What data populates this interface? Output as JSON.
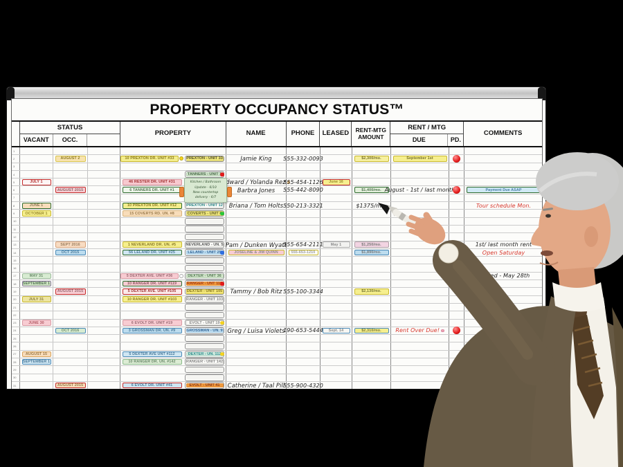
{
  "board": {
    "title": "PROPERTY OCCUPANCY STATUS™",
    "headers": {
      "status": "STATUS",
      "vacant": "VACANT",
      "occ": "OCC.",
      "property": "PROPERTY",
      "name": "NAME",
      "phone": "PHONE",
      "leased": "LEASED",
      "amount_line1": "RENT-MTG",
      "amount_line2": "AMOUNT",
      "rent_mtg": "RENT / MTG",
      "due": "DUE",
      "pd": "PD.",
      "comments": "COMMENTS"
    },
    "colors": {
      "frame": "#c2c2c2",
      "face": "#fcfcfa",
      "grid": "#cbcbcb",
      "dot_red": "#e31b1b",
      "dot_green": "#27c837",
      "dot_yellow": "#f5d21f",
      "dot_blue": "#2f6fe0",
      "dot_pink": "#f0a8b8",
      "clip_orange": "#ea8638"
    },
    "rows": [
      {
        "n": "1"
      },
      {
        "n": "2",
        "occ": {
          "t": "AUGUST 2",
          "f": "#f8e3ae",
          "b": "#d8c44e",
          "c": "#8a7a22"
        },
        "prop": {
          "t": "10 PREXTON DR. UNIT #33",
          "f": "#f4ee8e",
          "b": "#c5b32a",
          "c": "#8a7a22"
        },
        "propdot": {
          "color": "#f5d21f",
          "border": "#b9a512"
        },
        "card": {
          "t": "PREXTON - UNIT 33",
          "f": "#f0e87c",
          "b": "#bdb268",
          "c": "#55512a"
        },
        "name": {
          "t": "Jamie King"
        },
        "phone": {
          "t": "555-332-0093"
        },
        "amount": {
          "t": "$2,300/mo.",
          "f": "#f6f0a0",
          "b": "#c9b92e",
          "c": "#77702a"
        },
        "due": {
          "tag": {
            "t": "September 1st",
            "f": "#f6ef8e",
            "b": "#c9b92e",
            "c": "#77702a"
          }
        },
        "pd": "red"
      },
      {
        "n": "3"
      },
      {
        "n": "4",
        "card": {
          "t": "TANNERS - UNIT 1",
          "f": "#cfe3c9",
          "b": "#96b296",
          "c": "#4a6a4a",
          "dot": "#e31b1b"
        },
        "note": {
          "lines": [
            "Kitchen / Bathroom",
            "Update - 6/10",
            "New countertop",
            "delivery - 6/7"
          ]
        }
      },
      {
        "n": "5",
        "vac": {
          "t": "JULY 1",
          "f": "#fdf5f5",
          "b": "#c32a2a",
          "c": "#b32a2a"
        },
        "prop": {
          "t": "46 RESTER DR. UNIT #31",
          "f": "#f7c9cf",
          "b": "#d8909a",
          "c": "#a33333"
        },
        "name": {
          "t": "Edward / Yolanda Rez",
          "dot": "#d8b27a"
        },
        "phone": {
          "t": "555-454-1126"
        },
        "leased": {
          "t": "June 16",
          "f": "#f6ef8e",
          "b": "#c32a2a",
          "c": "#9a8a2a"
        }
      },
      {
        "n": "6",
        "occ": {
          "t": "AUGUST 2015",
          "f": "#f8ccd2",
          "b": "#c32a2a",
          "c": "#8a6a6a"
        },
        "prop": {
          "t": "6 TANNERS DR. UNIT #1",
          "f": "#eef6ea",
          "b": "#2d6a2d",
          "c": "#557755"
        },
        "name": {
          "t": "Barbra Jones"
        },
        "phone": {
          "t": "555-442-8090"
        },
        "amount": {
          "t": "$1,400/mo.",
          "f": "#e4f0dc",
          "b": "#2d6a2d",
          "c": "#557755"
        },
        "due": {
          "hw": {
            "t": "August - 1st / last month",
            "c": "#1c1c1c"
          }
        },
        "pd": "red",
        "comment": {
          "tag": {
            "t": "Payment Due ASAP",
            "f": "#cfe9f4",
            "b": "#2d6a2d",
            "c": "#4a7fa8"
          }
        }
      },
      {
        "n": "7"
      },
      {
        "n": "8",
        "vac": {
          "t": "JUNE 1",
          "f": "#f8ddba",
          "b": "#2d6a2d",
          "c": "#8a7a55"
        },
        "prop": {
          "t": "10 PREXTON DR. UNIT #12",
          "f": "#f4ee8e",
          "b": "#2d6a2d",
          "c": "#8a7a22"
        },
        "card": {
          "t": "PREXTON - UNIT 12",
          "f": "#fbfbf8",
          "b": "#bdbdb8",
          "c": "#2e8b8b"
        },
        "name": {
          "t": "Briana / Tom Holts"
        },
        "phone": {
          "t": "550-213-3321"
        },
        "amount": {
          "hw": {
            "t": "$1375/mo.",
            "c": "#1c1c1c"
          }
        },
        "comment": {
          "hw": {
            "t": "Tour schedule Mon.",
            "c": "#d6352b"
          }
        }
      },
      {
        "n": "9",
        "vac": {
          "t": "OCTOBER 1",
          "f": "#f6ef8e",
          "b": "#c9b92e",
          "c": "#9a8a2a"
        },
        "prop": {
          "t": "15 COVERTS RD. UN. #8",
          "f": "#f8ddba",
          "b": "#d8b27a",
          "c": "#9a7a4a"
        },
        "card": {
          "t": "COVERTS - UNIT 8",
          "f": "#f0e87c",
          "b": "#bdb268",
          "c": "#6a6530",
          "dot": "#27c837"
        }
      },
      {
        "n": "10",
        "empty_card": true
      },
      {
        "n": "11",
        "empty_card": true
      },
      {
        "n": "12",
        "empty_card": true
      },
      {
        "n": "13",
        "occ": {
          "t": "SEPT 2016",
          "f": "#f8dcc2",
          "b": "#d8a27a",
          "c": "#9a7a5a"
        },
        "prop": {
          "t": "1 NEVERLAND DR. UN. #5",
          "f": "#f6ef8e",
          "b": "#c9b92e",
          "c": "#8a7a22"
        },
        "card": {
          "t": "NEVERLAND - UN. 5",
          "f": "#fbfbf8",
          "b": "#bdbdb8",
          "c": "#555555"
        },
        "name": {
          "t": "Pam / Dunken Wyatt"
        },
        "phone": {
          "t": "555-654-2111"
        },
        "leased": {
          "t": "May 1",
          "f": "#f2f2f0",
          "b": "#aaaaaa",
          "c": "#888888"
        },
        "amount": {
          "t": "$1,250/mo.",
          "f": "#f2d4e2",
          "b": "#b0a0a8",
          "c": "#777777"
        },
        "pd": "green",
        "comment": {
          "hw": {
            "t": "1st/ last month rent",
            "c": "#1c1c1c"
          }
        }
      },
      {
        "n": "14",
        "occ": {
          "t": "OCT 2015",
          "f": "#bcdcee",
          "b": "#4a8ab8",
          "c": "#4a7a9a"
        },
        "prop": {
          "t": "56 LELAND DR. UNIT #25",
          "f": "#cfe6f2",
          "b": "#2d6a2d",
          "c": "#4a7a9a"
        },
        "card": {
          "t": "LELAND - UNIT 25",
          "f": "#bfdff2",
          "b": "#8fb5cf",
          "c": "#3a6a9a",
          "dot": "#2f6fe0"
        },
        "name": {
          "tag": {
            "t": "JOSELINE & JIM QUINN",
            "f": "#f8ccd2",
            "b": "#c9b92e",
            "c": "#8a8a8a"
          }
        },
        "phone": {
          "tag": {
            "t": "555-653-1210",
            "f": "#fdfdf8",
            "b": "#c9b92e",
            "c": "#999999"
          }
        },
        "amount": {
          "t": "$1,890/mo.",
          "f": "#bcdcee",
          "b": "#4a8ab8",
          "c": "#777777"
        },
        "pd": "green",
        "comment": {
          "hw": {
            "t": "Open Saturday",
            "c": "#d6352b"
          }
        }
      },
      {
        "n": "15",
        "empty_card": true
      },
      {
        "n": "16",
        "empty_card": true
      },
      {
        "n": "17",
        "vac": {
          "t": "MAY 31",
          "f": "#d8ecd2",
          "b": "#9aba9a",
          "c": "#6a8a6a"
        },
        "prop": {
          "t": "5 DEXTER AVE. UNIT #36",
          "f": "#f8ccd2",
          "b": "#d89aa4",
          "c": "#9a6a72"
        },
        "propdot": {
          "color": "#ffffff",
          "border": "#aaaaaa"
        },
        "card": {
          "t": "DEXTER - UNIT 36",
          "f": "#d4e8cc",
          "b": "#9ab89a",
          "c": "#557755"
        },
        "pd": "green",
        "comment": {
          "hw": {
            "t": "Leased - May 28th",
            "c": "#1c1c1c"
          }
        }
      },
      {
        "n": "18",
        "vac": {
          "t": "SEPTEMBER 1",
          "f": "#cfe4c4",
          "b": "#8a7a9a",
          "c": "#557755"
        },
        "prop": {
          "t": "10 RANGER DR. UNIT #119",
          "f": "#f8ccd2",
          "b": "#2d6a2d",
          "c": "#8a555f"
        },
        "card": {
          "t": "RANGER - UNT 119",
          "f": "#f09a3e",
          "b": "#c87a2a",
          "c": "#a33a1a",
          "dot": "#e31b1b"
        }
      },
      {
        "n": "19",
        "occ": {
          "t": "AUGUST 2015",
          "f": "#f8ccd2",
          "b": "#c32a2a",
          "c": "#9a6a72"
        },
        "prop": {
          "t": "5 DEXTER AVE. UNIT #105",
          "f": "#fbeaea",
          "b": "#c32a2a",
          "c": "#a33333"
        },
        "card": {
          "t": "DEXTER - UNIT 105",
          "f": "#f4e87a",
          "b": "#c9b92e",
          "c": "#8a7a22"
        },
        "name": {
          "t": "Tammy / Bob Ritz"
        },
        "phone": {
          "t": "555-100-3344"
        },
        "amount": {
          "t": "$2,130/mo.",
          "f": "#f6ef8e",
          "b": "#c9b92e",
          "c": "#777733"
        }
      },
      {
        "n": "20",
        "vac": {
          "t": "JULY 31",
          "f": "#ede5a0",
          "b": "#c9b92e",
          "c": "#8a7a3a"
        },
        "prop": {
          "t": "10 RANGER DR. UNIT #103",
          "f": "#f6ef8e",
          "b": "#c9b92e",
          "c": "#8a7a22"
        },
        "card": {
          "t": "RANGER - UNIT 103",
          "f": "#fbfbf8",
          "b": "#bdbdb8",
          "c": "#888888"
        }
      },
      {
        "n": "21",
        "empty_card": true
      },
      {
        "n": "22",
        "empty_card": true
      },
      {
        "n": "23",
        "vac": {
          "t": "JUNE 30",
          "f": "#f8ccd2",
          "b": "#d89aa4",
          "c": "#b35a64"
        },
        "prop": {
          "t": "6 EVOLT DR. UNIT #19",
          "f": "#f8ccd2",
          "b": "#d89aa4",
          "c": "#9a6a72"
        },
        "card": {
          "t": "EVOLT - UNIT 19",
          "f": "#fbfbf8",
          "b": "#bdbdb8",
          "c": "#888888",
          "dot": "#f5d21f"
        }
      },
      {
        "n": "24",
        "occ": {
          "t": "OCT 2016",
          "f": "#d8ecd2",
          "b": "#4a8ab8",
          "c": "#6a8a6a"
        },
        "prop": {
          "t": "3 GROSSMAN DR. UN. #9",
          "f": "#bcdcee",
          "b": "#4a8ab8",
          "c": "#4a7a9a"
        },
        "card": {
          "t": "GROSSMAN - UN. 9",
          "f": "#bfdff2",
          "b": "#8fb5cf",
          "c": "#3a6a9a"
        },
        "name": {
          "t": "Greg / Luisa Violets"
        },
        "phone": {
          "t": "190-653-5444"
        },
        "leased": {
          "t": "Sept. 14",
          "f": "#f6f6f2",
          "b": "#4a8ab8",
          "c": "#888888"
        },
        "amount": {
          "t": "$2,310/mo.",
          "f": "#f6ef8e",
          "b": "#4a8ab8",
          "c": "#777733"
        },
        "due": {
          "hw": {
            "t": "Rent Over Due!",
            "c": "#d6352b"
          },
          "dot": "#f0a8b8"
        },
        "pd": "red"
      },
      {
        "n": "25",
        "empty_card": true
      },
      {
        "n": "26",
        "empty_card": true
      },
      {
        "n": "27",
        "vac": {
          "t": "AUGUST 15",
          "f": "#f8dcba",
          "b": "#d8a25a",
          "c": "#9a7a4a"
        },
        "prop": {
          "t": "5 DEXTER AVE UNT #112",
          "f": "#cfe6f2",
          "b": "#4a8ab8",
          "c": "#4a7a9a"
        },
        "card": {
          "t": "DEXTER - UN. 112",
          "f": "#cce8dd",
          "b": "#9ac2b2",
          "c": "#2e8b8b",
          "dot": "#f5d21f"
        }
      },
      {
        "n": "28",
        "vac": {
          "t": "SEPTEMBER 1",
          "f": "#cfe6f2",
          "b": "#4a8ab8",
          "c": "#4a7a9a"
        },
        "prop": {
          "t": "10 RANGER DR. UN. #142",
          "f": "#dcecd4",
          "b": "#8aba8a",
          "c": "#6a8a6a"
        },
        "card": {
          "t": "RANGER - UNIT 142",
          "f": "#fbfbf8",
          "b": "#bdbdb8",
          "c": "#888888"
        }
      },
      {
        "n": "29",
        "empty_card": true
      },
      {
        "n": "30",
        "empty_card": true
      },
      {
        "n": "31",
        "occ": {
          "t": "AUGUST 2015",
          "f": "#f8dcba",
          "b": "#c32a2a",
          "c": "#9a7a4a"
        },
        "prop": {
          "t": "6 EVOLT DR. UNIT #41",
          "f": "#cfe6f2",
          "b": "#c32a2a",
          "c": "#4a7a9a"
        },
        "card": {
          "t": "EVOLT - UNIT 41",
          "f": "#f09a3e",
          "b": "#c87a2a",
          "c": "#8a3a1a"
        },
        "name": {
          "t": "Catherine / Taal Pill"
        },
        "phone": {
          "t": "555-900-4320"
        },
        "pd": "green"
      }
    ]
  },
  "figure": {
    "description": "Gray-haired man in brown suit pointing a marker at the board",
    "suit_color": "#675a45",
    "skin_color": "#dfa07e",
    "hair_color": "#c9c9c7",
    "shirt_color": "#f4f1e9",
    "tie_color": "#533d25"
  }
}
